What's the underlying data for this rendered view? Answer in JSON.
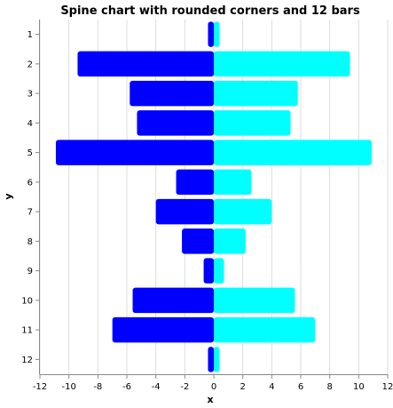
{
  "chart_data": {
    "type": "bar",
    "orientation": "horizontal",
    "title": "Spine chart with rounded corners and 12 bars",
    "xlabel": "x",
    "ylabel": "y",
    "xlim": [
      -12,
      12
    ],
    "xticks": [
      -12,
      -10,
      -8,
      -6,
      -4,
      -2,
      0,
      2,
      4,
      6,
      8,
      10,
      12
    ],
    "categories": [
      "1",
      "2",
      "3",
      "4",
      "5",
      "6",
      "7",
      "8",
      "9",
      "10",
      "11",
      "12"
    ],
    "grid": true,
    "series": [
      {
        "color": "#0000ff",
        "values": [
          -0.4,
          -9.4,
          -5.8,
          -5.3,
          -10.9,
          -2.6,
          -4.0,
          -2.2,
          -0.7,
          -5.6,
          -7.0,
          -0.4
        ]
      },
      {
        "color": "#00ffff",
        "values": [
          0.4,
          9.4,
          5.8,
          5.3,
          10.9,
          2.6,
          4.0,
          2.2,
          0.7,
          5.6,
          7.0,
          0.4
        ]
      }
    ]
  }
}
